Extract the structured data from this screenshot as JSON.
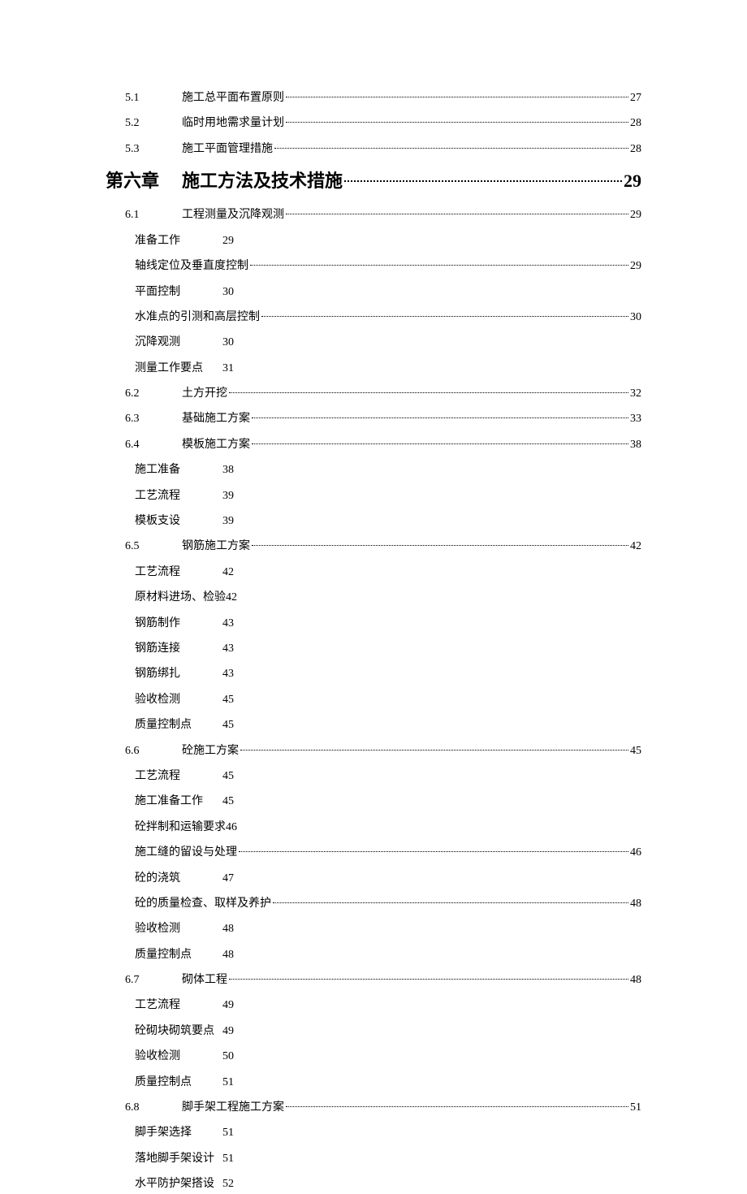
{
  "toc": {
    "pre": [
      {
        "num": "5.1",
        "title": "施工总平面布置原则",
        "page": "27"
      },
      {
        "num": "5.2",
        "title": "临时用地需求量计划",
        "page": "28"
      },
      {
        "num": "5.3",
        "title": "施工平面管理措施",
        "page": "28"
      }
    ],
    "chapter": {
      "label": "第六章",
      "title": "施工方法及技术措施",
      "page": "29"
    },
    "s61": {
      "num": "6.1",
      "title": "工程测量及沉降观测",
      "page": "29"
    },
    "s61sub": [
      {
        "label": "准备工作",
        "page": "29",
        "leader": false
      },
      {
        "label": "轴线定位及垂直度控制",
        "page": "29",
        "leader": true
      },
      {
        "label": "平面控制",
        "page": "30",
        "leader": false
      },
      {
        "label": "水准点的引测和高层控制",
        "page": "30",
        "leader": true
      },
      {
        "label": "沉降观测",
        "page": "30",
        "leader": false
      },
      {
        "label": "测量工作要点",
        "page": "31",
        "leader": false
      }
    ],
    "s62": {
      "num": "6.2",
      "title": "土方开挖",
      "page": "32"
    },
    "s63": {
      "num": "6.3",
      "title": "基础施工方案",
      "page": "33"
    },
    "s64": {
      "num": "6.4",
      "title": "模板施工方案",
      "page": "38"
    },
    "s64sub": [
      {
        "label": "施工准备",
        "page": "38",
        "leader": false
      },
      {
        "label": "工艺流程",
        "page": "39",
        "leader": false
      },
      {
        "label": "模板支设",
        "page": "39",
        "leader": false
      }
    ],
    "s65": {
      "num": "6.5",
      "title": "钢筋施工方案",
      "page": "42"
    },
    "s65sub": [
      {
        "label": "工艺流程",
        "page": "42",
        "leader": false
      },
      {
        "label": "原材料进场、检验",
        "page": "42",
        "leader": false,
        "tight": true
      },
      {
        "label": "钢筋制作",
        "page": "43",
        "leader": false
      },
      {
        "label": "钢筋连接",
        "page": "43",
        "leader": false
      },
      {
        "label": "钢筋绑扎",
        "page": "43",
        "leader": false
      },
      {
        "label": "验收检测",
        "page": "45",
        "leader": false
      },
      {
        "label": "质量控制点",
        "page": "45",
        "leader": false
      }
    ],
    "s66": {
      "num": "6.6",
      "title": "砼施工方案",
      "page": "45"
    },
    "s66sub": [
      {
        "label": "工艺流程",
        "page": "45",
        "leader": false
      },
      {
        "label": "施工准备工作",
        "page": "45",
        "leader": false
      },
      {
        "label": "砼拌制和运输要求",
        "page": "46",
        "leader": false,
        "tight": true
      },
      {
        "label": "施工缝的留设与处理",
        "page": "46",
        "leader": true
      },
      {
        "label": "砼的浇筑",
        "page": "47",
        "leader": false
      },
      {
        "label": "砼的质量检查、取样及养护",
        "page": "48",
        "leader": true
      },
      {
        "label": "验收检测",
        "page": "48",
        "leader": false
      },
      {
        "label": "质量控制点",
        "page": "48",
        "leader": false
      }
    ],
    "s67": {
      "num": "6.7",
      "title": "砌体工程",
      "page": "48"
    },
    "s67sub": [
      {
        "label": "工艺流程",
        "page": "49",
        "leader": false
      },
      {
        "label": "砼砌块砌筑要点",
        "page": "49",
        "leader": false
      },
      {
        "label": "验收检测",
        "page": "50",
        "leader": false
      },
      {
        "label": "质量控制点",
        "page": "51",
        "leader": false
      }
    ],
    "s68": {
      "num": "6.8",
      "title": "脚手架工程施工方案",
      "page": "51"
    },
    "s68sub": [
      {
        "label": "脚手架选择",
        "page": "51",
        "leader": false
      },
      {
        "label": "落地脚手架设计",
        "page": "51",
        "leader": false
      },
      {
        "label": "水平防护架搭设",
        "page": "52",
        "leader": false
      }
    ]
  }
}
